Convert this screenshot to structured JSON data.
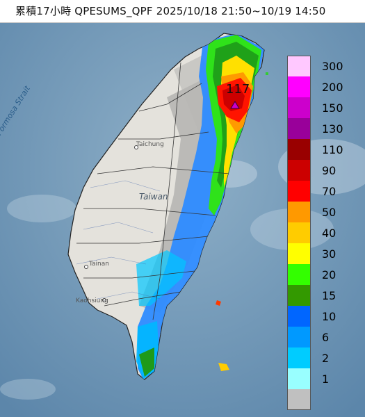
{
  "title": "累積17小時 QPESUMS_QPF 2025/10/18 21:50~10/19 14:50",
  "labels": {
    "strait": "Formosa Strait",
    "island": "Taiwan",
    "taichung": "Taichung",
    "tainan": "Tainan",
    "kaohsiung": "Kaohsiung",
    "max_value": "117"
  },
  "legend": {
    "unit": "",
    "bins": [
      {
        "label": "300",
        "color": "#ffc8ff"
      },
      {
        "label": "200",
        "color": "#ff00ff"
      },
      {
        "label": "150",
        "color": "#cc00cc"
      },
      {
        "label": "130",
        "color": "#99009a"
      },
      {
        "label": "110",
        "color": "#990000"
      },
      {
        "label": "90",
        "color": "#cc0000"
      },
      {
        "label": "70",
        "color": "#ff0000"
      },
      {
        "label": "50",
        "color": "#ff9900"
      },
      {
        "label": "40",
        "color": "#ffcc00"
      },
      {
        "label": "30",
        "color": "#ffff00"
      },
      {
        "label": "20",
        "color": "#33ff00"
      },
      {
        "label": "15",
        "color": "#339900"
      },
      {
        "label": "10",
        "color": "#0066ff"
      },
      {
        "label": "6",
        "color": "#0099ff"
      },
      {
        "label": "2",
        "color": "#00ccff"
      },
      {
        "label": "1",
        "color": "#99ffff"
      },
      {
        "label": "",
        "color": "#c0c0c0"
      }
    ]
  }
}
